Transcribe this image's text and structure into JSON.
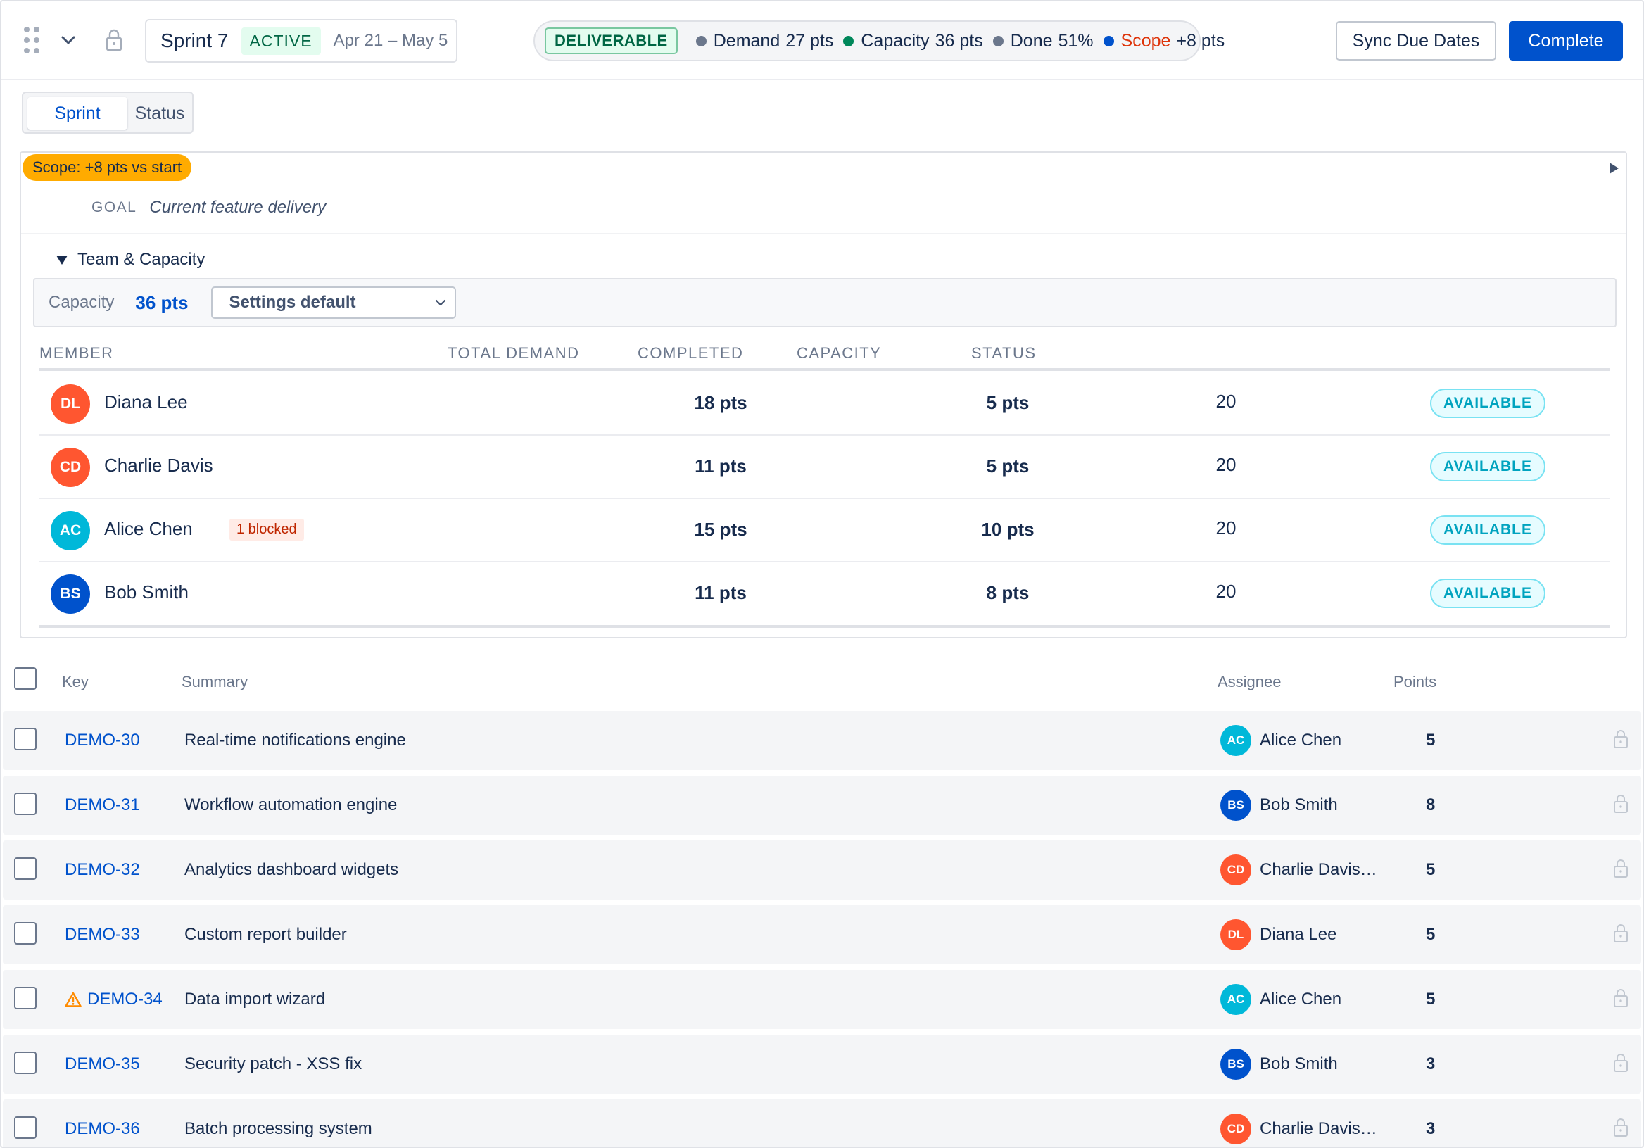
{
  "header": {
    "sprint_name": "Sprint 7",
    "status": "ACTIVE",
    "dates": "Apr 21 – May 5",
    "deliverable": "DELIVERABLE",
    "metrics": [
      {
        "label": "Demand",
        "value": "27 pts",
        "color": "#6b778c"
      },
      {
        "label": "Capacity",
        "value": "36 pts",
        "color": "#00875a"
      },
      {
        "label": "Done",
        "value": "51%",
        "color": "#6b778c"
      },
      {
        "label": "Scope",
        "value": "+8 pts",
        "color": "#0052cc",
        "label_color": "#de350b"
      }
    ],
    "sync_label": "Sync Due Dates",
    "complete_label": "Complete"
  },
  "tabs": {
    "sprint": "Sprint",
    "status": "Status"
  },
  "panel": {
    "scope_chip": "Scope: +8 pts vs start",
    "goal_label": "GOAL",
    "goal_value": "Current feature delivery",
    "team_label": "Team & Capacity",
    "capacity_label": "Capacity",
    "capacity_value": "36 pts",
    "capacity_select": "Settings default",
    "columns": {
      "member": "MEMBER",
      "total_demand": "TOTAL DEMAND",
      "completed": "COMPLETED",
      "capacity": "CAPACITY",
      "status": "STATUS"
    },
    "members": [
      {
        "initials": "DL",
        "name": "Diana Lee",
        "blocked": "",
        "demand": "18 pts",
        "completed": "5 pts",
        "capacity": "20",
        "status": "AVAILABLE",
        "color": "#ff5630"
      },
      {
        "initials": "CD",
        "name": "Charlie Davis",
        "blocked": "",
        "demand": "11 pts",
        "completed": "5 pts",
        "capacity": "20",
        "status": "AVAILABLE",
        "color": "#ff5630"
      },
      {
        "initials": "AC",
        "name": "Alice Chen",
        "blocked": "1 blocked",
        "demand": "15 pts",
        "completed": "10 pts",
        "capacity": "20",
        "status": "AVAILABLE",
        "color": "#00b8d9"
      },
      {
        "initials": "BS",
        "name": "Bob Smith",
        "blocked": "",
        "demand": "11 pts",
        "completed": "8 pts",
        "capacity": "20",
        "status": "AVAILABLE",
        "color": "#0052cc"
      }
    ]
  },
  "issues": {
    "columns": {
      "key": "Key",
      "summary": "Summary",
      "assignee": "Assignee",
      "points": "Points"
    },
    "rows": [
      {
        "key": "DEMO-30",
        "summary": "Real-time notifications engine",
        "initials": "AC",
        "assignee": "Alice Chen",
        "points": "5",
        "color": "#00b8d9",
        "warning": false
      },
      {
        "key": "DEMO-31",
        "summary": "Workflow automation engine",
        "initials": "BS",
        "assignee": "Bob Smith",
        "points": "8",
        "color": "#0052cc",
        "warning": false
      },
      {
        "key": "DEMO-32",
        "summary": "Analytics dashboard widgets",
        "initials": "CD",
        "assignee": "Charlie Davis…",
        "points": "5",
        "color": "#ff5630",
        "warning": false
      },
      {
        "key": "DEMO-33",
        "summary": "Custom report builder",
        "initials": "DL",
        "assignee": "Diana Lee",
        "points": "5",
        "color": "#ff5630",
        "warning": false
      },
      {
        "key": "DEMO-34",
        "summary": "Data import wizard",
        "initials": "AC",
        "assignee": "Alice Chen",
        "points": "5",
        "color": "#00b8d9",
        "warning": true
      },
      {
        "key": "DEMO-35",
        "summary": "Security patch - XSS fix",
        "initials": "BS",
        "assignee": "Bob Smith",
        "points": "3",
        "color": "#0052cc",
        "warning": false
      },
      {
        "key": "DEMO-36",
        "summary": "Batch processing system",
        "initials": "CD",
        "assignee": "Charlie Davis…",
        "points": "3",
        "color": "#ff5630",
        "warning": false
      }
    ]
  }
}
